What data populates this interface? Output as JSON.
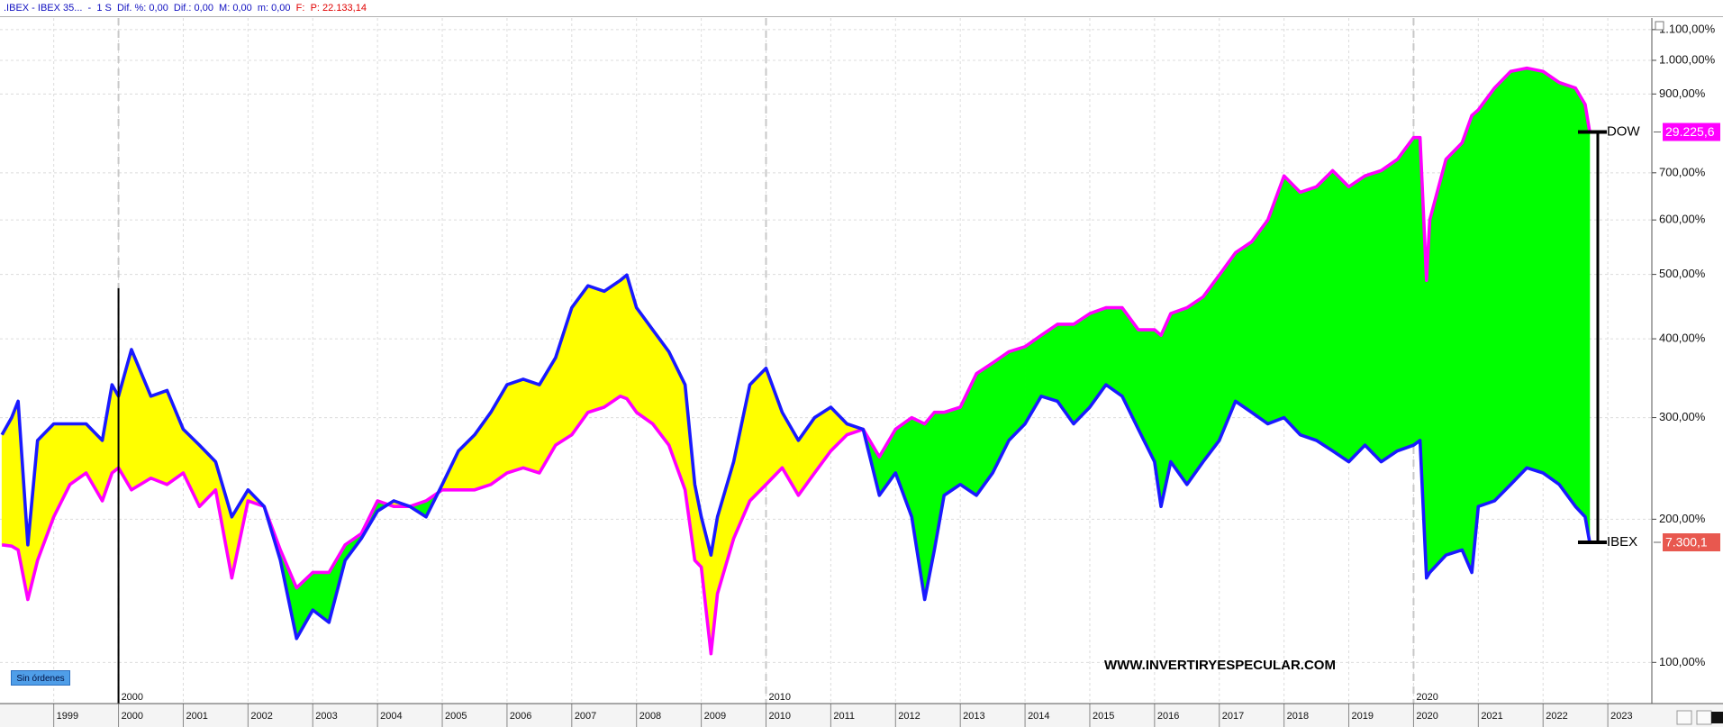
{
  "header": {
    "symbol": ".IBEX - IBEX 35...  -  1 S",
    "stats": "Dif. %: 0,00  Dif.: 0,00  M: 0,00  m: 0,00",
    "f_label": "F:",
    "price": "P: 22.133,14"
  },
  "button": "Sin órdenes",
  "chart_data": {
    "type": "line",
    "y_scale": "log-percent-change",
    "watermark": "WWW.INVERTIRYESPECULAR.COM",
    "x": [
      1998.2,
      1998.35,
      1998.45,
      1998.6,
      1998.75,
      1999.0,
      1999.25,
      1999.5,
      1999.75,
      1999.9,
      2000.0,
      2000.2,
      2000.5,
      2000.75,
      2001.0,
      2001.25,
      2001.5,
      2001.75,
      2002.0,
      2002.25,
      2002.5,
      2002.75,
      2003.0,
      2003.25,
      2003.5,
      2003.75,
      2004.0,
      2004.25,
      2004.5,
      2004.75,
      2005.0,
      2005.25,
      2005.5,
      2005.75,
      2006.0,
      2006.25,
      2006.5,
      2006.75,
      2007.0,
      2007.25,
      2007.5,
      2007.75,
      2007.85,
      2008.0,
      2008.25,
      2008.5,
      2008.75,
      2008.9,
      2009.0,
      2009.15,
      2009.25,
      2009.5,
      2009.75,
      2010.0,
      2010.25,
      2010.5,
      2010.75,
      2011.0,
      2011.25,
      2011.5,
      2011.75,
      2012.0,
      2012.25,
      2012.45,
      2012.6,
      2012.75,
      2013.0,
      2013.25,
      2013.5,
      2013.75,
      2014.0,
      2014.25,
      2014.5,
      2014.75,
      2015.0,
      2015.25,
      2015.5,
      2015.75,
      2016.0,
      2016.1,
      2016.25,
      2016.5,
      2016.75,
      2017.0,
      2017.25,
      2017.5,
      2017.75,
      2018.0,
      2018.25,
      2018.5,
      2018.75,
      2019.0,
      2019.25,
      2019.5,
      2019.75,
      2020.0,
      2020.1,
      2020.2,
      2020.25,
      2020.5,
      2020.75,
      2020.9,
      2021.0,
      2021.25,
      2021.5,
      2021.75,
      2022.0,
      2022.25,
      2022.5,
      2022.65,
      2022.72
    ],
    "series": [
      {
        "name": "IBEX",
        "color": "#1a1aff",
        "tag_color": "#e8584f",
        "last_label": "7.300,1",
        "values": [
          281,
          300,
          319,
          179,
          275,
          293,
          293,
          293,
          275,
          339,
          325,
          385,
          325,
          332,
          287,
          270,
          253,
          202,
          226,
          211,
          167,
          114,
          132,
          124,
          167,
          184,
          207,
          216,
          211,
          202,
          231,
          264,
          281,
          306,
          339,
          346,
          339,
          374,
          446,
          481,
          472,
          490,
          499,
          446,
          413,
          382,
          339,
          231,
          202,
          171,
          202,
          253,
          339,
          360,
          306,
          275,
          300,
          312,
          293,
          287,
          221,
          242,
          202,
          139,
          175,
          221,
          231,
          221,
          242,
          275,
          293,
          325,
          319,
          293,
          312,
          339,
          325,
          287,
          253,
          211,
          253,
          231,
          253,
          275,
          319,
          306,
          293,
          300,
          281,
          275,
          264,
          253,
          270,
          253,
          264,
          270,
          275,
          154,
          158,
          171,
          175,
          158,
          211,
          216,
          231,
          247,
          242,
          231,
          211,
          202,
          181
        ]
      },
      {
        "name": "DOW",
        "color": "#ff00ff",
        "tag_color": "#ff00ff",
        "last_label": "29.225,6",
        "values": [
          179,
          178,
          175,
          139,
          167,
          202,
          231,
          242,
          216,
          242,
          247,
          226,
          237,
          231,
          242,
          211,
          226,
          154,
          216,
          211,
          175,
          147,
          158,
          158,
          179,
          188,
          216,
          211,
          211,
          216,
          226,
          226,
          226,
          231,
          242,
          247,
          242,
          270,
          281,
          306,
          312,
          325,
          322,
          306,
          293,
          270,
          226,
          167,
          162,
          105,
          143,
          184,
          216,
          231,
          247,
          221,
          242,
          264,
          281,
          287,
          258,
          287,
          300,
          293,
          306,
          306,
          312,
          353,
          367,
          382,
          389,
          405,
          421,
          421,
          437,
          446,
          446,
          413,
          413,
          405,
          437,
          446,
          463,
          499,
          538,
          558,
          600,
          693,
          657,
          669,
          705,
          669,
          693,
          705,
          731,
          784,
          784,
          490,
          600,
          731,
          771,
          841,
          856,
          917,
          966,
          976,
          966,
          933,
          917,
          871,
          798
        ]
      }
    ],
    "fill_colors": {
      "first_above": "#ffff00",
      "second_above": "#00ff00"
    },
    "marker_line": {
      "x": 2000,
      "y_top": 477
    },
    "xlim": [
      1998.17,
      2023.68
    ],
    "xticks": [
      1999,
      2000,
      2001,
      2002,
      2003,
      2004,
      2005,
      2006,
      2007,
      2008,
      2009,
      2010,
      2011,
      2012,
      2013,
      2014,
      2015,
      2016,
      2017,
      2018,
      2019,
      2020,
      2021,
      2022,
      2023
    ],
    "major_xticks": [
      2000,
      2010,
      2020
    ],
    "ylim": [
      78,
      1140
    ],
    "yticks": [
      {
        "value": 100,
        "label": "100,00%"
      },
      {
        "value": 200,
        "label": "200,00%"
      },
      {
        "value": 300,
        "label": "300,00%"
      },
      {
        "value": 400,
        "label": "400,00%"
      },
      {
        "value": 500,
        "label": "500,00%"
      },
      {
        "value": 600,
        "label": "600,00%"
      },
      {
        "value": 700,
        "label": "700,00%"
      },
      {
        "value": 900,
        "label": "900,00%"
      },
      {
        "value": 1000,
        "label": "1.000,00%"
      },
      {
        "value": 1100,
        "label": "1.100,00%"
      }
    ],
    "grid": true
  }
}
